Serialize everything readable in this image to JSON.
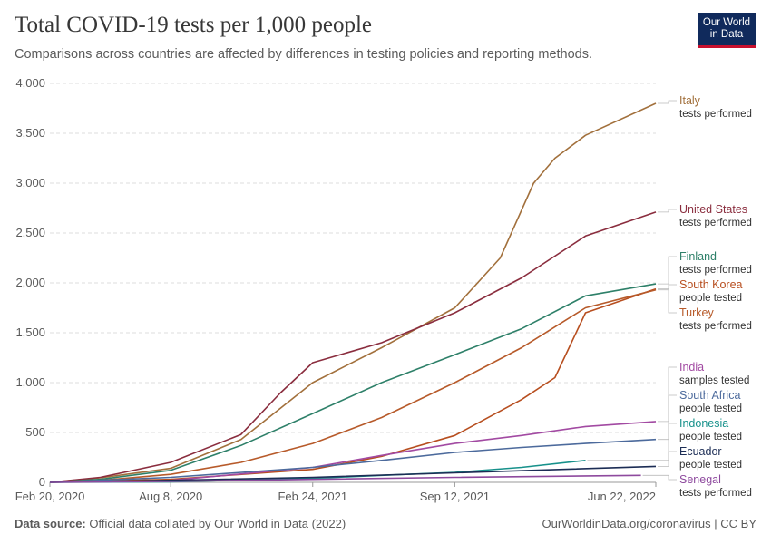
{
  "header": {
    "title": "Total COVID-19 tests per 1,000 people",
    "subtitle": "Comparisons across countries are affected by differences in testing policies and reporting methods.",
    "logo_line1": "Our World",
    "logo_line2": "in Data"
  },
  "footer": {
    "source_label": "Data source:",
    "source_text": "Official data collated by Our World in Data (2022)",
    "right_text": "OurWorldinData.org/coronavirus | CC BY"
  },
  "chart_data": {
    "type": "line",
    "title": "Total COVID-19 tests per 1,000 people",
    "subtitle": "Comparisons across countries are affected by differences in testing policies and reporting methods.",
    "ylim": [
      0,
      4000
    ],
    "yticks": [
      0,
      500,
      1000,
      1500,
      2000,
      2500,
      3000,
      3500,
      4000
    ],
    "ytick_labels": [
      "0",
      "500",
      "1,000",
      "1,500",
      "2,000",
      "2,500",
      "3,000",
      "3,500",
      "4,000"
    ],
    "xlim": [
      "2020-02-20",
      "2022-06-22"
    ],
    "xticks": [
      "2020-02-20",
      "2020-08-08",
      "2021-02-24",
      "2021-09-12",
      "2022-06-22"
    ],
    "xtick_labels": [
      "Feb 20, 2020",
      "Aug 8, 2020",
      "Feb 24, 2021",
      "Sep 12, 2021",
      "Jun 22, 2022"
    ],
    "grid": "horizontal dashed",
    "legend": "right, labels at line ends",
    "series": [
      {
        "name": "Italy",
        "unit": "tests performed",
        "color": "#a2703c",
        "x": [
          "2020-02-20",
          "2020-05-01",
          "2020-08-08",
          "2020-11-15",
          "2021-02-24",
          "2021-06-01",
          "2021-09-12",
          "2021-11-15",
          "2022-01-01",
          "2022-01-31",
          "2022-03-15",
          "2022-06-22"
        ],
        "y": [
          0,
          45,
          140,
          430,
          1000,
          1350,
          1750,
          2250,
          3000,
          3250,
          3480,
          3800
        ]
      },
      {
        "name": "United States",
        "unit": "tests performed",
        "color": "#8a2d3e",
        "x": [
          "2020-02-20",
          "2020-05-01",
          "2020-08-08",
          "2020-11-15",
          "2021-01-10",
          "2021-02-24",
          "2021-06-01",
          "2021-09-12",
          "2021-12-15",
          "2022-03-15",
          "2022-06-22"
        ],
        "y": [
          0,
          50,
          200,
          480,
          900,
          1200,
          1400,
          1700,
          2050,
          2470,
          2710
        ]
      },
      {
        "name": "Finland",
        "unit": "tests performed",
        "color": "#2e8069",
        "x": [
          "2020-02-20",
          "2020-05-01",
          "2020-08-08",
          "2020-11-15",
          "2021-02-24",
          "2021-06-01",
          "2021-09-12",
          "2021-12-15",
          "2022-03-15",
          "2022-06-22"
        ],
        "y": [
          0,
          30,
          120,
          370,
          690,
          1000,
          1280,
          1540,
          1870,
          1990
        ]
      },
      {
        "name": "South Korea",
        "unit": "people tested",
        "color": "#b74e1f",
        "x": [
          "2020-02-20",
          "2020-08-08",
          "2021-02-24",
          "2021-06-01",
          "2021-09-12",
          "2021-12-15",
          "2022-01-31",
          "2022-03-15",
          "2022-06-22"
        ],
        "y": [
          0,
          30,
          130,
          260,
          470,
          830,
          1050,
          1700,
          1940
        ]
      },
      {
        "name": "Turkey",
        "unit": "tests performed",
        "color": "#b75a2a",
        "x": [
          "2020-02-20",
          "2020-05-01",
          "2020-08-08",
          "2020-11-15",
          "2021-02-24",
          "2021-06-01",
          "2021-09-12",
          "2021-12-15",
          "2022-03-15",
          "2022-06-22"
        ],
        "y": [
          0,
          20,
          80,
          200,
          390,
          650,
          1000,
          1350,
          1750,
          1930
        ]
      },
      {
        "name": "India",
        "unit": "samples tested",
        "color": "#a24aa2",
        "x": [
          "2020-02-20",
          "2020-08-08",
          "2021-02-24",
          "2021-06-01",
          "2021-09-12",
          "2021-12-15",
          "2022-03-15",
          "2022-06-22"
        ],
        "y": [
          0,
          20,
          150,
          270,
          390,
          470,
          560,
          610
        ]
      },
      {
        "name": "South Africa",
        "unit": "people tested",
        "color": "#4c6a9c",
        "x": [
          "2020-02-20",
          "2020-08-08",
          "2021-02-24",
          "2021-06-01",
          "2021-09-12",
          "2021-12-15",
          "2022-03-15",
          "2022-06-22"
        ],
        "y": [
          0,
          50,
          150,
          220,
          300,
          350,
          390,
          430
        ]
      },
      {
        "name": "Indonesia",
        "unit": "people tested",
        "color": "#17918b",
        "x": [
          "2020-02-20",
          "2020-08-08",
          "2021-02-24",
          "2021-06-01",
          "2021-09-12",
          "2021-12-15",
          "2022-03-15"
        ],
        "y": [
          0,
          5,
          40,
          70,
          100,
          150,
          220
        ]
      },
      {
        "name": "Ecuador",
        "unit": "people tested",
        "color": "#1c2d55",
        "x": [
          "2020-02-20",
          "2020-08-08",
          "2021-02-24",
          "2021-09-12",
          "2022-06-22"
        ],
        "y": [
          0,
          20,
          50,
          95,
          160
        ]
      },
      {
        "name": "Senegal",
        "unit": "tests performed",
        "color": "#8e4a9e",
        "x": [
          "2020-02-20",
          "2020-08-08",
          "2021-02-24",
          "2021-09-12",
          "2022-06-01"
        ],
        "y": [
          0,
          10,
          30,
          50,
          70
        ]
      }
    ]
  }
}
